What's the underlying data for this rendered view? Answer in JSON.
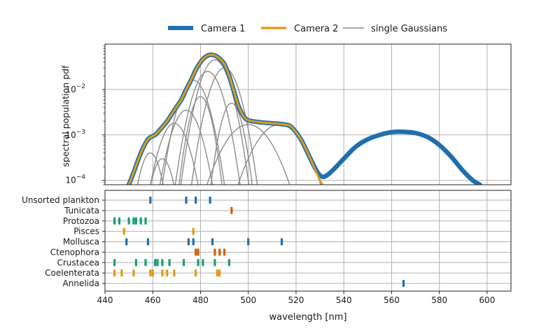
{
  "chart_data": [
    {
      "type": "line",
      "ylabel": "spectral population pdf",
      "yscale": "log",
      "xlim": [
        440,
        610
      ],
      "ylim": [
        8e-05,
        0.1
      ],
      "ytick_labels": [
        {
          "value": 0.0001,
          "base": "10",
          "exp": "−4"
        },
        {
          "value": 0.001,
          "base": "10",
          "exp": "−3"
        },
        {
          "value": 0.01,
          "base": "10",
          "exp": "−2"
        }
      ],
      "grid": true,
      "legend": {
        "placement": "top-center",
        "entries": [
          {
            "label": "Camera 1",
            "color": "#1f6fae",
            "style": "thick"
          },
          {
            "label": "Camera 2",
            "color": "#e09b1a",
            "style": "medium"
          },
          {
            "label": "single Gaussians",
            "color": "#8c8c8c",
            "style": "thin"
          }
        ]
      },
      "series": [
        {
          "name": "Camera 1",
          "color": "#1f6fae",
          "x": [
            450,
            452,
            455,
            458,
            461,
            463,
            466,
            469,
            472,
            474,
            476,
            478,
            480,
            482,
            484,
            486,
            488,
            490,
            492,
            494,
            496,
            498,
            500,
            505,
            510,
            515,
            518,
            522,
            526,
            529,
            531,
            533,
            536,
            540,
            545,
            550,
            555,
            560,
            565,
            570,
            575,
            580,
            585,
            590,
            594,
            597
          ],
          "y": [
            8e-05,
            0.00015,
            0.0004,
            0.0008,
            0.001,
            0.0013,
            0.002,
            0.0035,
            0.006,
            0.01,
            0.016,
            0.027,
            0.04,
            0.052,
            0.058,
            0.056,
            0.048,
            0.036,
            0.02,
            0.009,
            0.0042,
            0.0026,
            0.0021,
            0.0019,
            0.0018,
            0.0017,
            0.0015,
            0.0008,
            0.0003,
            0.00015,
            0.00012,
            0.00013,
            0.00018,
            0.0003,
            0.00055,
            0.0008,
            0.001,
            0.00115,
            0.00117,
            0.0011,
            0.0009,
            0.0006,
            0.00033,
            0.00016,
            0.0001,
            8e-05
          ]
        },
        {
          "name": "Camera 2",
          "color": "#e09b1a",
          "x": [
            450,
            452,
            455,
            458,
            461,
            463,
            466,
            469,
            472,
            474,
            476,
            478,
            480,
            482,
            484,
            486,
            488,
            490,
            492,
            494,
            496,
            498,
            500,
            505,
            510,
            515,
            518,
            522,
            526,
            529,
            531
          ],
          "y": [
            8e-05,
            0.00015,
            0.0004,
            0.0008,
            0.001,
            0.0013,
            0.002,
            0.0035,
            0.006,
            0.01,
            0.016,
            0.027,
            0.04,
            0.052,
            0.058,
            0.056,
            0.048,
            0.036,
            0.02,
            0.009,
            0.0042,
            0.0026,
            0.0021,
            0.0019,
            0.0018,
            0.0017,
            0.0015,
            0.0008,
            0.0003,
            0.00013,
            8e-05
          ]
        }
      ],
      "single_gaussians": {
        "name": "single Gaussians",
        "color": "#8c8c8c",
        "components": [
          {
            "mean": 459,
            "peak": 0.0004,
            "sd": 3
          },
          {
            "mean": 464,
            "peak": 0.0003,
            "sd": 3
          },
          {
            "mean": 469,
            "peak": 0.0018,
            "sd": 4
          },
          {
            "mean": 474,
            "peak": 0.0035,
            "sd": 4
          },
          {
            "mean": 477,
            "peak": 0.016,
            "sd": 4
          },
          {
            "mean": 480,
            "peak": 0.007,
            "sd": 3
          },
          {
            "mean": 483,
            "peak": 0.025,
            "sd": 4
          },
          {
            "mean": 486,
            "peak": 0.045,
            "sd": 4
          },
          {
            "mean": 490,
            "peak": 0.03,
            "sd": 4
          },
          {
            "mean": 493,
            "peak": 0.005,
            "sd": 3
          },
          {
            "mean": 500,
            "peak": 0.0017,
            "sd": 7
          },
          {
            "mean": 513,
            "peak": 0.0017,
            "sd": 7
          }
        ]
      }
    },
    {
      "type": "scatter",
      "xlabel": "wavelength [nm]",
      "xlim": [
        440,
        610
      ],
      "xticks": [
        440,
        460,
        480,
        500,
        520,
        540,
        560,
        580,
        600
      ],
      "grid": true,
      "marker": "vertical-tick",
      "categories": [
        "Unsorted plankton",
        "Tunicata",
        "Protozoa",
        "Pisces",
        "Mollusca",
        "Ctenophora",
        "Crustacea",
        "Coelenterata",
        "Annelida"
      ],
      "series": [
        {
          "category": "Unsorted plankton",
          "color": "#1f6fae",
          "x": [
            459,
            474,
            478,
            484
          ]
        },
        {
          "category": "Tunicata",
          "color": "#d55e00",
          "x": [
            493
          ]
        },
        {
          "category": "Protozoa",
          "color": "#1a9e77",
          "x": [
            444,
            446,
            450,
            452,
            453,
            455,
            457
          ]
        },
        {
          "category": "Pisces",
          "color": "#e09b1a",
          "x": [
            448,
            477
          ]
        },
        {
          "category": "Mollusca",
          "color": "#1f6fae",
          "x": [
            449,
            458,
            475,
            477,
            485,
            500,
            514
          ]
        },
        {
          "category": "Ctenophora",
          "color": "#d55e00",
          "x": [
            478,
            479,
            486,
            488,
            490
          ]
        },
        {
          "category": "Crustacea",
          "color": "#1a9e77",
          "x": [
            444,
            453,
            457,
            461,
            462,
            464,
            467,
            473,
            479,
            481,
            486,
            492
          ]
        },
        {
          "category": "Coelenterata",
          "color": "#e09b1a",
          "x": [
            444,
            447,
            452,
            459,
            460,
            464,
            466,
            469,
            478,
            487,
            488
          ]
        },
        {
          "category": "Annelida",
          "color": "#1f6fae",
          "x": [
            565
          ]
        }
      ]
    }
  ]
}
